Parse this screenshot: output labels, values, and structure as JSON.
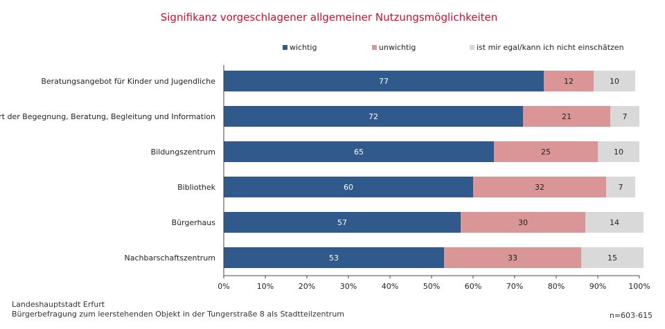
{
  "chart_data": {
    "type": "bar",
    "orientation": "horizontal",
    "stacked": true,
    "normalized_percent": true,
    "title": "Signifikanz vorgeschlagener allgemeiner Nutzungsmöglichkeiten",
    "categories": [
      "Beratungsangebot für Kinder und Jugendliche",
      "Ort der Begegnung, Beratung, Begleitung und Information",
      "Bildungszentrum",
      "Bibliothek",
      "Bürgerhaus",
      "Nachbarschaftszentrum"
    ],
    "series": [
      {
        "name": "wichtig",
        "color": "#305a8c",
        "label_color": "#ffffff",
        "values": [
          77,
          72,
          65,
          60,
          57,
          53
        ]
      },
      {
        "name": "unwichtig",
        "color": "#da9596",
        "label_color": "#222222",
        "values": [
          12,
          21,
          25,
          32,
          30,
          33
        ]
      },
      {
        "name": "ist mir egal/kann ich nicht einschätzen",
        "color": "#d9d9d9",
        "label_color": "#222222",
        "values": [
          10,
          7,
          10,
          7,
          14,
          15
        ]
      }
    ],
    "xlim": [
      0,
      100
    ],
    "xticks": [
      "0%",
      "10%",
      "20%",
      "30%",
      "40%",
      "50%",
      "60%",
      "70%",
      "80%",
      "90%",
      "100%"
    ],
    "legend_position": "top",
    "grid": false
  },
  "footer": {
    "source_line1": "Landeshauptstadt Erfurt",
    "source_line2": "Bürgerbefragung  zum leerstehenden  Objekt in der Tungerstraße  8 als Stadtteilzentrum",
    "sample_size": "n=603-615"
  }
}
